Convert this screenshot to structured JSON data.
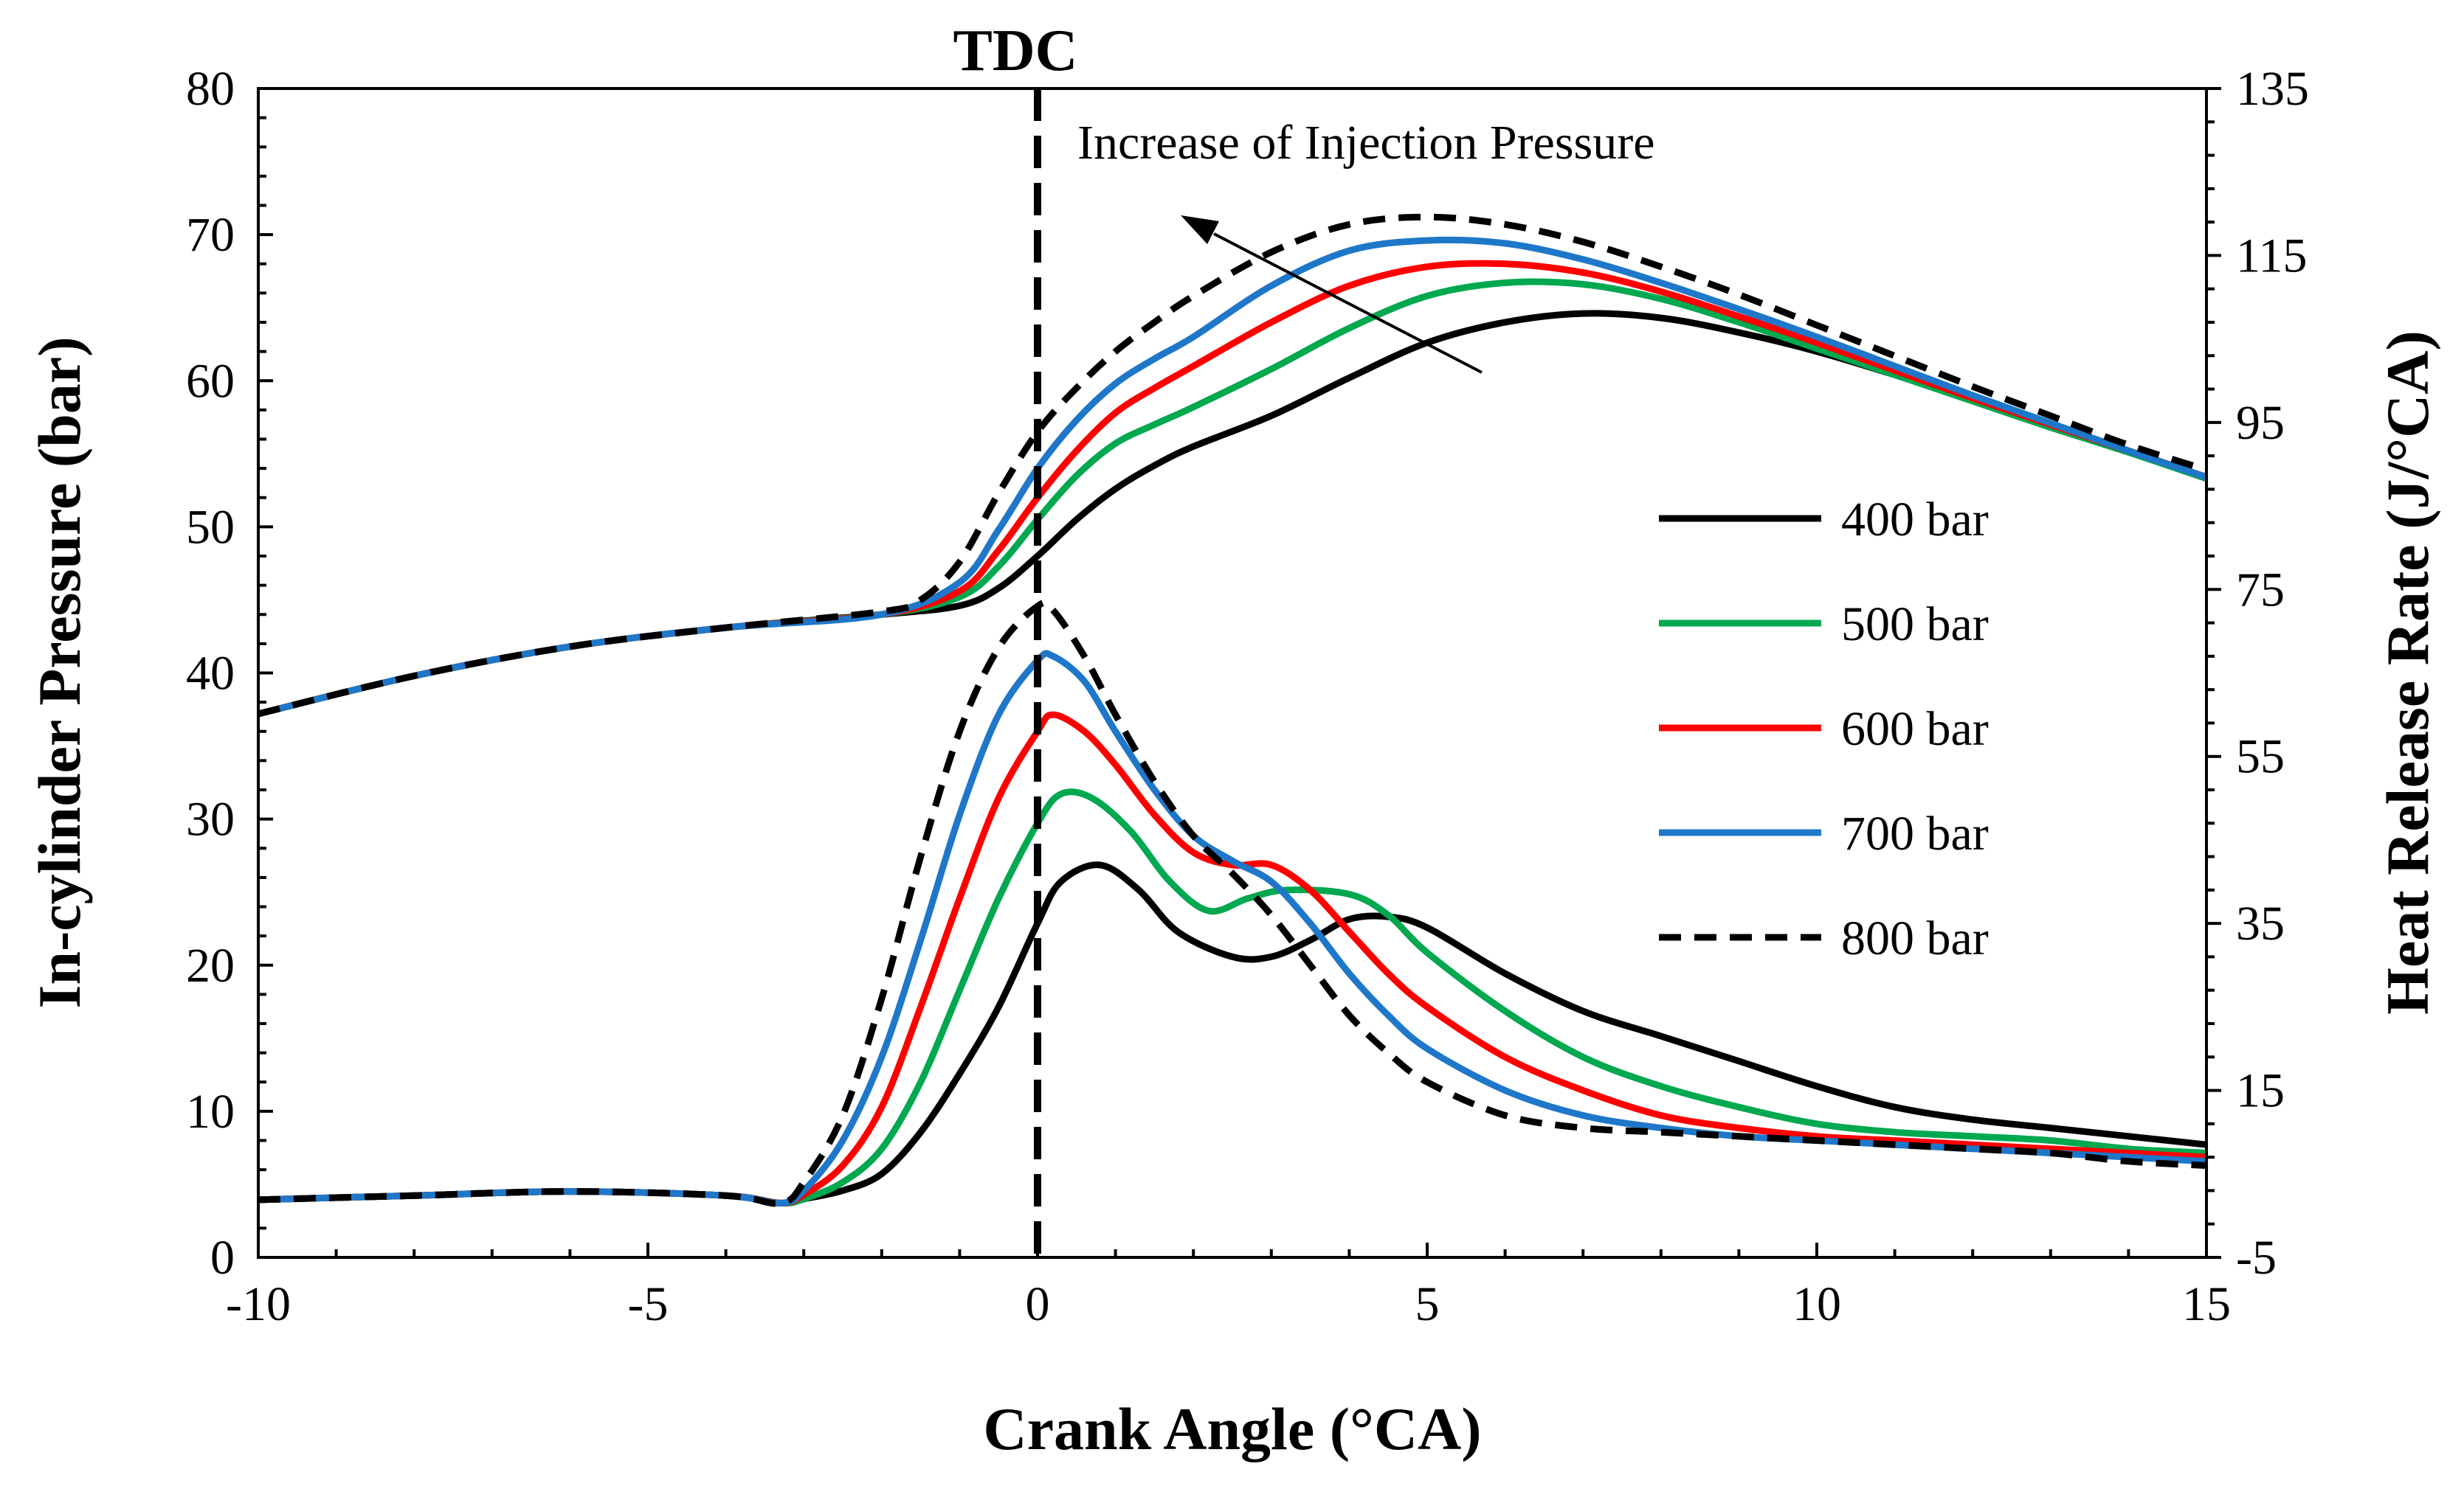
{
  "chart_data": {
    "type": "line",
    "title": "",
    "xlabel": "Crank Angle (°CA)",
    "ylabel_left": "In-cylinder Pressure (bar)",
    "ylabel_right": "Heat Release Rate (J/°CA)",
    "xlim": [
      -10,
      15
    ],
    "ylim_left": [
      0,
      80
    ],
    "ylim_right": [
      -5,
      135
    ],
    "xticks": [
      "-10",
      "-5",
      "0",
      "5",
      "10",
      "15"
    ],
    "yticks_left": [
      "0",
      "10",
      "20",
      "30",
      "40",
      "50",
      "60",
      "70",
      "80"
    ],
    "yticks_right": [
      "-5",
      "15",
      "35",
      "55",
      "75",
      "95",
      "115",
      "135"
    ],
    "grid": false,
    "legend_position": "center-right",
    "annotations": {
      "tdc_label": "TDC",
      "tdc_x": 0,
      "arrow_text": "Increase of Injection Pressure"
    },
    "series": [
      {
        "name": "400 bar",
        "color": "#000000",
        "dash": false,
        "pressure": [
          [
            -10,
            37.2
          ],
          [
            -8,
            39.8
          ],
          [
            -6,
            41.8
          ],
          [
            -4,
            43.1
          ],
          [
            -2,
            44.0
          ],
          [
            -1,
            44.6
          ],
          [
            -0.5,
            45.8
          ],
          [
            0,
            48.0
          ],
          [
            0.5,
            50.5
          ],
          [
            1,
            52.6
          ],
          [
            1.5,
            54.2
          ],
          [
            2,
            55.5
          ],
          [
            3,
            57.6
          ],
          [
            4,
            60.2
          ],
          [
            5,
            62.6
          ],
          [
            6,
            64.0
          ],
          [
            7,
            64.6
          ],
          [
            8,
            64.3
          ],
          [
            9,
            63.3
          ],
          [
            10,
            62.0
          ],
          [
            11,
            60.4
          ],
          [
            12,
            58.7
          ],
          [
            13,
            57.0
          ],
          [
            14,
            55.2
          ],
          [
            15,
            53.4
          ]
        ],
        "heat_release": [
          [
            -10,
            1.9
          ],
          [
            -8,
            2.4
          ],
          [
            -6,
            2.9
          ],
          [
            -4,
            2.4
          ],
          [
            -3.3,
            1.5
          ],
          [
            -3,
            2.0
          ],
          [
            -2.5,
            3.0
          ],
          [
            -2,
            5.0
          ],
          [
            -1.5,
            10
          ],
          [
            -1,
            17
          ],
          [
            -0.5,
            25
          ],
          [
            0,
            35
          ],
          [
            0.3,
            40
          ],
          [
            0.8,
            42
          ],
          [
            1.3,
            39
          ],
          [
            1.8,
            34
          ],
          [
            2.5,
            31
          ],
          [
            3,
            31
          ],
          [
            3.5,
            33
          ],
          [
            4,
            35.5
          ],
          [
            4.5,
            35.8
          ],
          [
            5,
            34.5
          ],
          [
            6,
            29
          ],
          [
            7,
            24.5
          ],
          [
            8,
            21.5
          ],
          [
            9,
            18.5
          ],
          [
            10,
            15.5
          ],
          [
            11,
            13
          ],
          [
            12,
            11.5
          ],
          [
            13,
            10.5
          ],
          [
            14,
            9.5
          ],
          [
            15,
            8.5
          ]
        ]
      },
      {
        "name": "500 bar",
        "color": "#00a84f",
        "dash": false,
        "pressure": [
          [
            -10,
            37.2
          ],
          [
            -8,
            39.8
          ],
          [
            -6,
            41.8
          ],
          [
            -4,
            43.1
          ],
          [
            -2,
            44.0
          ],
          [
            -1,
            45.2
          ],
          [
            -0.5,
            47.3
          ],
          [
            0,
            50.5
          ],
          [
            0.5,
            53.5
          ],
          [
            1,
            55.7
          ],
          [
            1.5,
            57.0
          ],
          [
            2,
            58.2
          ],
          [
            3,
            60.8
          ],
          [
            4,
            63.6
          ],
          [
            5,
            65.8
          ],
          [
            6,
            66.7
          ],
          [
            7,
            66.6
          ],
          [
            8,
            65.6
          ],
          [
            9,
            64.0
          ],
          [
            10,
            62.2
          ],
          [
            11,
            60.4
          ],
          [
            12,
            58.6
          ],
          [
            13,
            56.8
          ],
          [
            14,
            55.1
          ],
          [
            15,
            53.3
          ]
        ],
        "heat_release": [
          [
            -10,
            1.9
          ],
          [
            -8,
            2.4
          ],
          [
            -6,
            2.9
          ],
          [
            -4,
            2.4
          ],
          [
            -3.3,
            1.5
          ],
          [
            -3,
            2.0
          ],
          [
            -2.5,
            4
          ],
          [
            -2,
            8
          ],
          [
            -1.5,
            16
          ],
          [
            -1,
            27
          ],
          [
            -0.5,
            38
          ],
          [
            0,
            47
          ],
          [
            0.3,
            50.5
          ],
          [
            0.7,
            50
          ],
          [
            1.2,
            46
          ],
          [
            1.7,
            40
          ],
          [
            2.2,
            36.5
          ],
          [
            2.7,
            38
          ],
          [
            3.2,
            39
          ],
          [
            4,
            38.5
          ],
          [
            4.5,
            36
          ],
          [
            5,
            31.5
          ],
          [
            6,
            24.5
          ],
          [
            7,
            19
          ],
          [
            8,
            15.5
          ],
          [
            9,
            13
          ],
          [
            10,
            11
          ],
          [
            11,
            10
          ],
          [
            12,
            9.5
          ],
          [
            13,
            9
          ],
          [
            14,
            8
          ],
          [
            15,
            7.5
          ]
        ]
      },
      {
        "name": "600 bar",
        "color": "#ff0000",
        "dash": false,
        "pressure": [
          [
            -10,
            37.2
          ],
          [
            -8,
            39.8
          ],
          [
            -6,
            41.8
          ],
          [
            -4,
            43.1
          ],
          [
            -2,
            44.0
          ],
          [
            -1,
            45.6
          ],
          [
            -0.5,
            48.4
          ],
          [
            0,
            52.0
          ],
          [
            0.5,
            55.2
          ],
          [
            1,
            57.8
          ],
          [
            1.5,
            59.5
          ],
          [
            2,
            61.0
          ],
          [
            3,
            64.0
          ],
          [
            4,
            66.5
          ],
          [
            5,
            67.8
          ],
          [
            6,
            68.0
          ],
          [
            7,
            67.4
          ],
          [
            8,
            66.1
          ],
          [
            9,
            64.4
          ],
          [
            10,
            62.6
          ],
          [
            11,
            60.7
          ],
          [
            12,
            58.8
          ],
          [
            13,
            57.0
          ],
          [
            14,
            55.2
          ],
          [
            15,
            53.4
          ]
        ],
        "heat_release": [
          [
            -10,
            1.9
          ],
          [
            -8,
            2.4
          ],
          [
            -6,
            2.9
          ],
          [
            -4,
            2.4
          ],
          [
            -3.3,
            1.5
          ],
          [
            -3,
            2.5
          ],
          [
            -2.5,
            6
          ],
          [
            -2,
            13
          ],
          [
            -1.5,
            25
          ],
          [
            -1,
            38
          ],
          [
            -0.5,
            50
          ],
          [
            0,
            58
          ],
          [
            0.2,
            60
          ],
          [
            0.6,
            58
          ],
          [
            1,
            54
          ],
          [
            1.5,
            48
          ],
          [
            2,
            43.5
          ],
          [
            2.5,
            42
          ],
          [
            3,
            42
          ],
          [
            3.5,
            39
          ],
          [
            4,
            34
          ],
          [
            4.5,
            29
          ],
          [
            5,
            25
          ],
          [
            6,
            19
          ],
          [
            7,
            15
          ],
          [
            8,
            12
          ],
          [
            9,
            10.5
          ],
          [
            10,
            9.5
          ],
          [
            11,
            9
          ],
          [
            12,
            8.5
          ],
          [
            13,
            8
          ],
          [
            14,
            7.5
          ],
          [
            15,
            7
          ]
        ]
      },
      {
        "name": "700 bar",
        "color": "#1f77c9",
        "dash": false,
        "pressure": [
          [
            -10,
            37.2
          ],
          [
            -8,
            39.8
          ],
          [
            -6,
            41.8
          ],
          [
            -4,
            43.1
          ],
          [
            -2,
            44.0
          ],
          [
            -1,
            46.2
          ],
          [
            -0.5,
            49.8
          ],
          [
            0,
            54.0
          ],
          [
            0.5,
            57.3
          ],
          [
            1,
            59.8
          ],
          [
            1.5,
            61.5
          ],
          [
            2,
            63.0
          ],
          [
            3,
            66.5
          ],
          [
            4,
            68.9
          ],
          [
            5,
            69.6
          ],
          [
            6,
            69.4
          ],
          [
            7,
            68.3
          ],
          [
            8,
            66.7
          ],
          [
            9,
            64.9
          ],
          [
            10,
            63.0
          ],
          [
            11,
            61.0
          ],
          [
            12,
            59.0
          ],
          [
            13,
            57.1
          ],
          [
            14,
            55.2
          ],
          [
            15,
            53.4
          ]
        ],
        "heat_release": [
          [
            -10,
            1.9
          ],
          [
            -8,
            2.4
          ],
          [
            -6,
            2.9
          ],
          [
            -4,
            2.4
          ],
          [
            -3.3,
            1.5
          ],
          [
            -3,
            3
          ],
          [
            -2.5,
            9
          ],
          [
            -2,
            19
          ],
          [
            -1.5,
            33
          ],
          [
            -1,
            48
          ],
          [
            -0.5,
            60
          ],
          [
            0,
            66.5
          ],
          [
            0.2,
            67
          ],
          [
            0.6,
            64
          ],
          [
            1,
            58
          ],
          [
            1.5,
            51
          ],
          [
            2,
            45.5
          ],
          [
            2.5,
            42.5
          ],
          [
            3,
            40
          ],
          [
            3.5,
            35
          ],
          [
            4,
            29
          ],
          [
            4.5,
            24
          ],
          [
            5,
            20
          ],
          [
            6,
            15
          ],
          [
            7,
            12
          ],
          [
            8,
            10.5
          ],
          [
            9,
            9.5
          ],
          [
            10,
            9
          ],
          [
            11,
            8.5
          ],
          [
            12,
            8
          ],
          [
            13,
            7.5
          ],
          [
            14,
            7
          ],
          [
            15,
            6.5
          ]
        ]
      },
      {
        "name": "800 bar",
        "color": "#000000",
        "dash": true,
        "pressure": [
          [
            -10,
            37.2
          ],
          [
            -8,
            39.8
          ],
          [
            -6,
            41.8
          ],
          [
            -4,
            43.1
          ],
          [
            -2,
            44.2
          ],
          [
            -1.5,
            45.0
          ],
          [
            -1,
            47.6
          ],
          [
            -0.5,
            52.3
          ],
          [
            0,
            56.5
          ],
          [
            0.5,
            59.5
          ],
          [
            1,
            62.0
          ],
          [
            1.5,
            64.0
          ],
          [
            2,
            65.8
          ],
          [
            3,
            68.8
          ],
          [
            4,
            70.7
          ],
          [
            5,
            71.2
          ],
          [
            6,
            70.7
          ],
          [
            7,
            69.5
          ],
          [
            8,
            67.8
          ],
          [
            9,
            65.9
          ],
          [
            10,
            63.8
          ],
          [
            11,
            61.7
          ],
          [
            12,
            59.6
          ],
          [
            13,
            57.6
          ],
          [
            14,
            55.6
          ],
          [
            15,
            53.9
          ]
        ],
        "heat_release": [
          [
            -10,
            1.9
          ],
          [
            -8,
            2.4
          ],
          [
            -6,
            2.9
          ],
          [
            -4,
            2.4
          ],
          [
            -3.3,
            1.5
          ],
          [
            -3,
            4
          ],
          [
            -2.5,
            12
          ],
          [
            -2,
            26
          ],
          [
            -1.5,
            43
          ],
          [
            -1,
            58
          ],
          [
            -0.5,
            68
          ],
          [
            0,
            73
          ],
          [
            0.2,
            72.5
          ],
          [
            0.6,
            67
          ],
          [
            1,
            60
          ],
          [
            1.5,
            52
          ],
          [
            2,
            45.5
          ],
          [
            2.5,
            41
          ],
          [
            3,
            36
          ],
          [
            3.5,
            30
          ],
          [
            4,
            24
          ],
          [
            4.5,
            19.5
          ],
          [
            5,
            16
          ],
          [
            6,
            12
          ],
          [
            7,
            10.5
          ],
          [
            8,
            10
          ],
          [
            9,
            9.5
          ],
          [
            10,
            9
          ],
          [
            11,
            8.5
          ],
          [
            12,
            8
          ],
          [
            13,
            7.5
          ],
          [
            14,
            6.5
          ],
          [
            15,
            6
          ]
        ]
      }
    ]
  }
}
